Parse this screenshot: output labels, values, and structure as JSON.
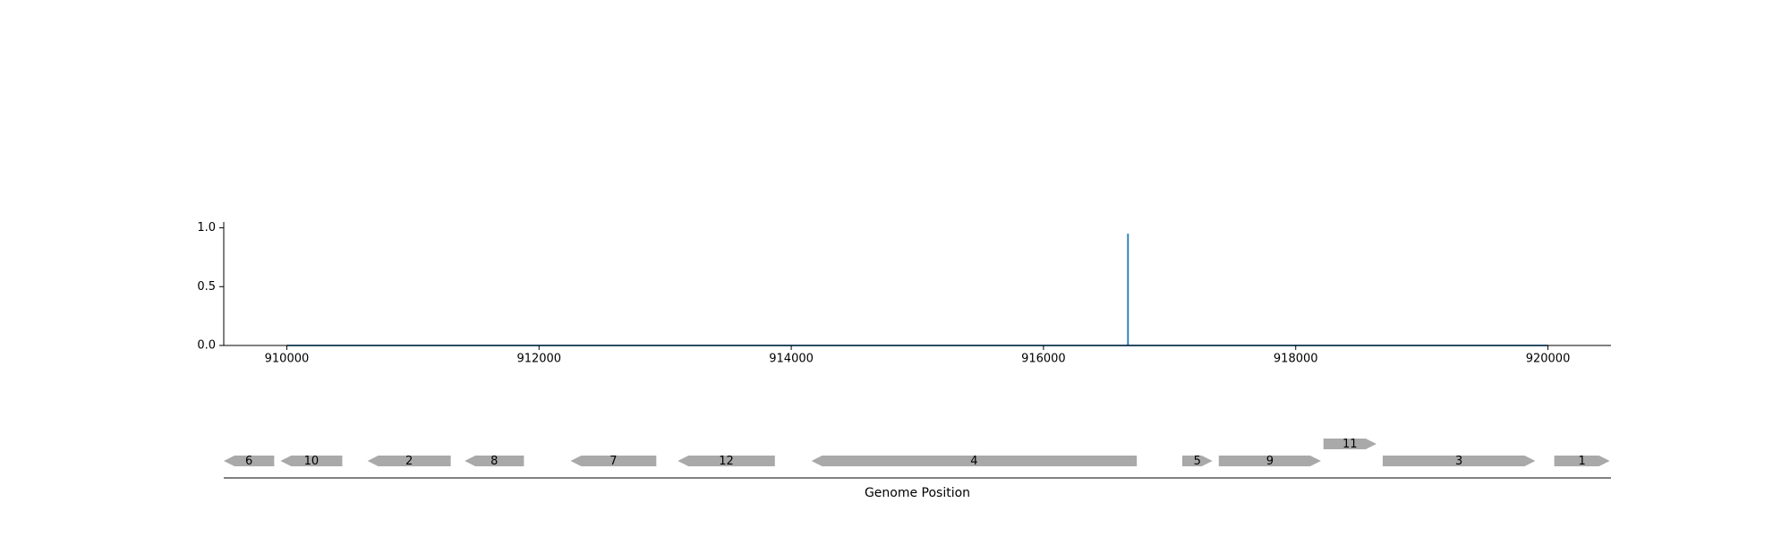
{
  "chart_data": [
    {
      "type": "line",
      "title": "",
      "xlabel": "",
      "ylabel": "",
      "xlim": [
        909500,
        920500
      ],
      "ylim": [
        0,
        1.05
      ],
      "x_ticks": [
        910000,
        912000,
        914000,
        916000,
        918000,
        920000
      ],
      "y_ticks": [
        "0.0",
        "0.5",
        "1.0"
      ],
      "grid": false,
      "legend": "none",
      "series": [
        {
          "color": "#1f77b4",
          "points": [
            [
              910000,
              0
            ],
            [
              916670,
              0
            ],
            [
              916670,
              0.95
            ],
            [
              916670,
              0
            ],
            [
              920000,
              0
            ]
          ]
        }
      ]
    },
    {
      "type": "gene-track",
      "title": "",
      "xlabel": "Genome Position",
      "xlim": [
        909500,
        920500
      ],
      "gene_color": "#a9a9a9",
      "genes": [
        {
          "label": "6",
          "start": 909500,
          "end": 909900,
          "strand": "-",
          "row": 0
        },
        {
          "label": "10",
          "start": 909950,
          "end": 910440,
          "strand": "-",
          "row": 0
        },
        {
          "label": "2",
          "start": 910640,
          "end": 911300,
          "strand": "-",
          "row": 0
        },
        {
          "label": "8",
          "start": 911410,
          "end": 911880,
          "strand": "-",
          "row": 0
        },
        {
          "label": "7",
          "start": 912250,
          "end": 912930,
          "strand": "-",
          "row": 0
        },
        {
          "label": "12",
          "start": 913100,
          "end": 913870,
          "strand": "-",
          "row": 0
        },
        {
          "label": "4",
          "start": 914160,
          "end": 916740,
          "strand": "-",
          "row": 0
        },
        {
          "label": "5",
          "start": 917100,
          "end": 917340,
          "strand": "+",
          "row": 0
        },
        {
          "label": "9",
          "start": 917390,
          "end": 918200,
          "strand": "+",
          "row": 0
        },
        {
          "label": "11",
          "start": 918220,
          "end": 918640,
          "strand": "+",
          "row": 1
        },
        {
          "label": "3",
          "start": 918690,
          "end": 919900,
          "strand": "+",
          "row": 0
        },
        {
          "label": "1",
          "start": 920050,
          "end": 920490,
          "strand": "+",
          "row": 0
        }
      ]
    }
  ]
}
